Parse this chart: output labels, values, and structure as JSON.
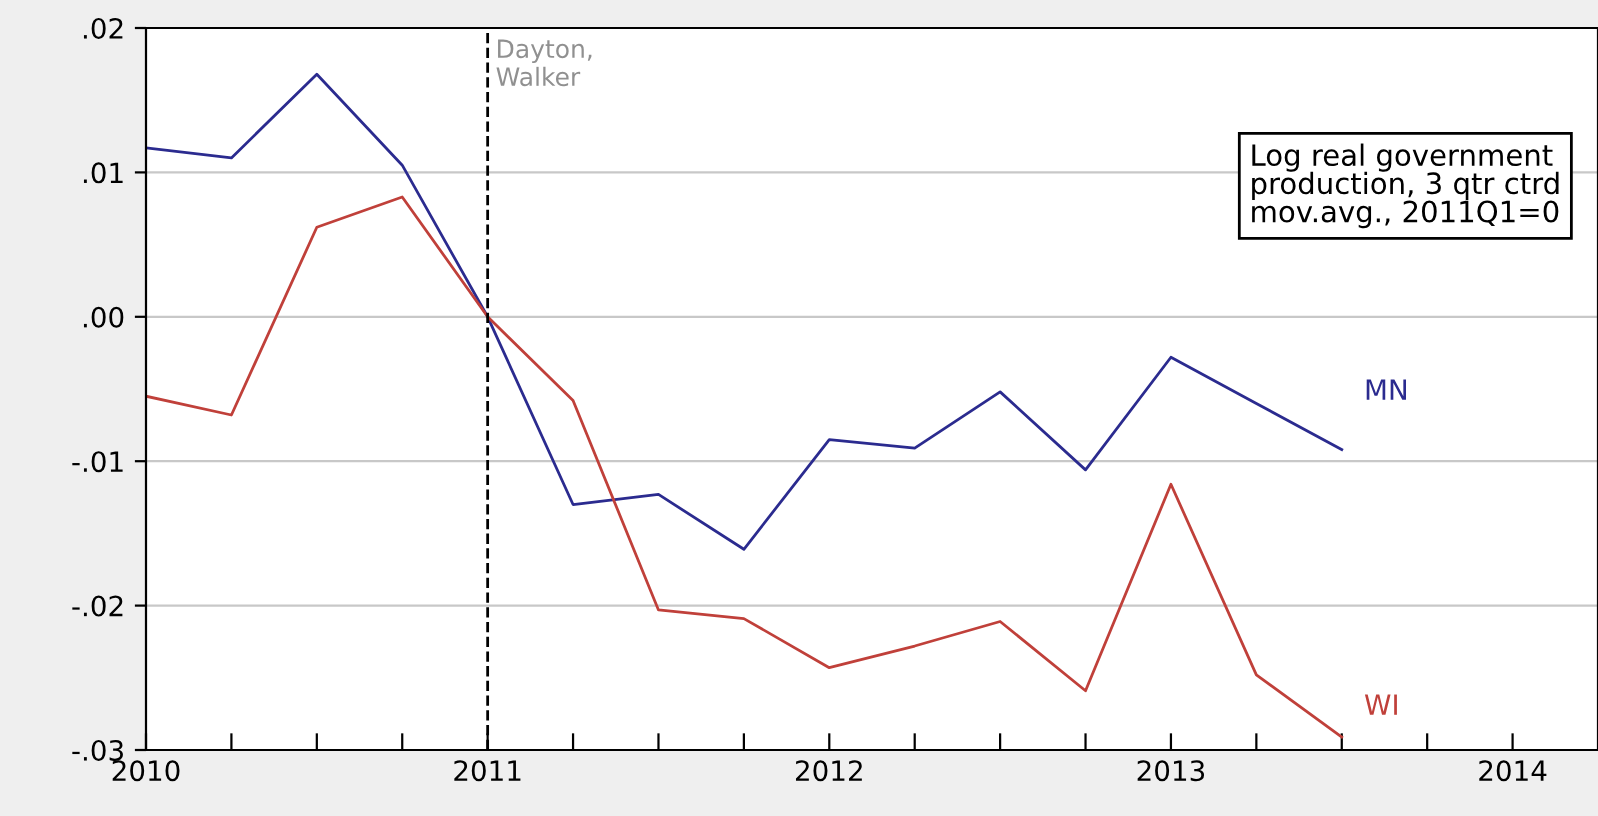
{
  "chart_data": {
    "type": "line",
    "x": [
      2010,
      2010.25,
      2010.5,
      2010.75,
      2011,
      2011.25,
      2011.5,
      2011.75,
      2012,
      2012.25,
      2012.5,
      2012.75,
      2013,
      2013.25,
      2013.5
    ],
    "series": [
      {
        "name": "MN",
        "color": "#2b2b8f",
        "values": [
          0.0117,
          0.011,
          0.0168,
          0.0105,
          0,
          -0.013,
          -0.0123,
          -0.0161,
          -0.0085,
          -0.0091,
          -0.0052,
          -0.0106,
          -0.0028,
          -0.006,
          -0.0092
        ]
      },
      {
        "name": "WI",
        "color": "#c0403a",
        "values": [
          -0.0055,
          -0.0068,
          0.0062,
          0.0083,
          0,
          -0.0058,
          -0.0203,
          -0.0209,
          -0.0243,
          -0.0228,
          -0.0211,
          -0.0259,
          -0.0116,
          -0.0248,
          -0.0291
        ]
      }
    ],
    "xlim": [
      2010,
      2014.25
    ],
    "xticks": [
      2010,
      {
        "value": 2010.25,
        "label": null
      },
      {
        "value": 2010.5,
        "label": null
      },
      {
        "value": 2010.75,
        "label": null
      },
      2011,
      {
        "value": 2011.25,
        "label": null
      },
      {
        "value": 2011.5,
        "label": null
      },
      {
        "value": 2011.75,
        "label": null
      },
      2012,
      {
        "value": 2012.25,
        "label": null
      },
      {
        "value": 2012.5,
        "label": null
      },
      {
        "value": 2012.75,
        "label": null
      },
      2013,
      {
        "value": 2013.25,
        "label": null
      },
      {
        "value": 2013.5,
        "label": null
      },
      {
        "value": 2013.75,
        "label": null
      },
      2014
    ],
    "ylim": [
      -0.03,
      0.02
    ],
    "yticks": [
      {
        "value": -0.03,
        "label": "-.03"
      },
      {
        "value": -0.02,
        "label": "-.02"
      },
      {
        "value": -0.01,
        "label": "-.01"
      },
      {
        "value": 0,
        "label": ".00"
      },
      {
        "value": 0.01,
        "label": ".01"
      },
      {
        "value": 0.02,
        "label": ".02"
      }
    ],
    "grid": "y",
    "ref_lines": [
      {
        "axis": "x",
        "value": 2011,
        "label": "Dayton,\nWalker",
        "color": "#000000",
        "line_style": "dashed"
      }
    ],
    "annotations": [
      "Log real government\nproduction, 3 qtr ctrd\nmov.avg., 2011Q1=0"
    ],
    "line_style": "solid",
    "marker": "none"
  }
}
